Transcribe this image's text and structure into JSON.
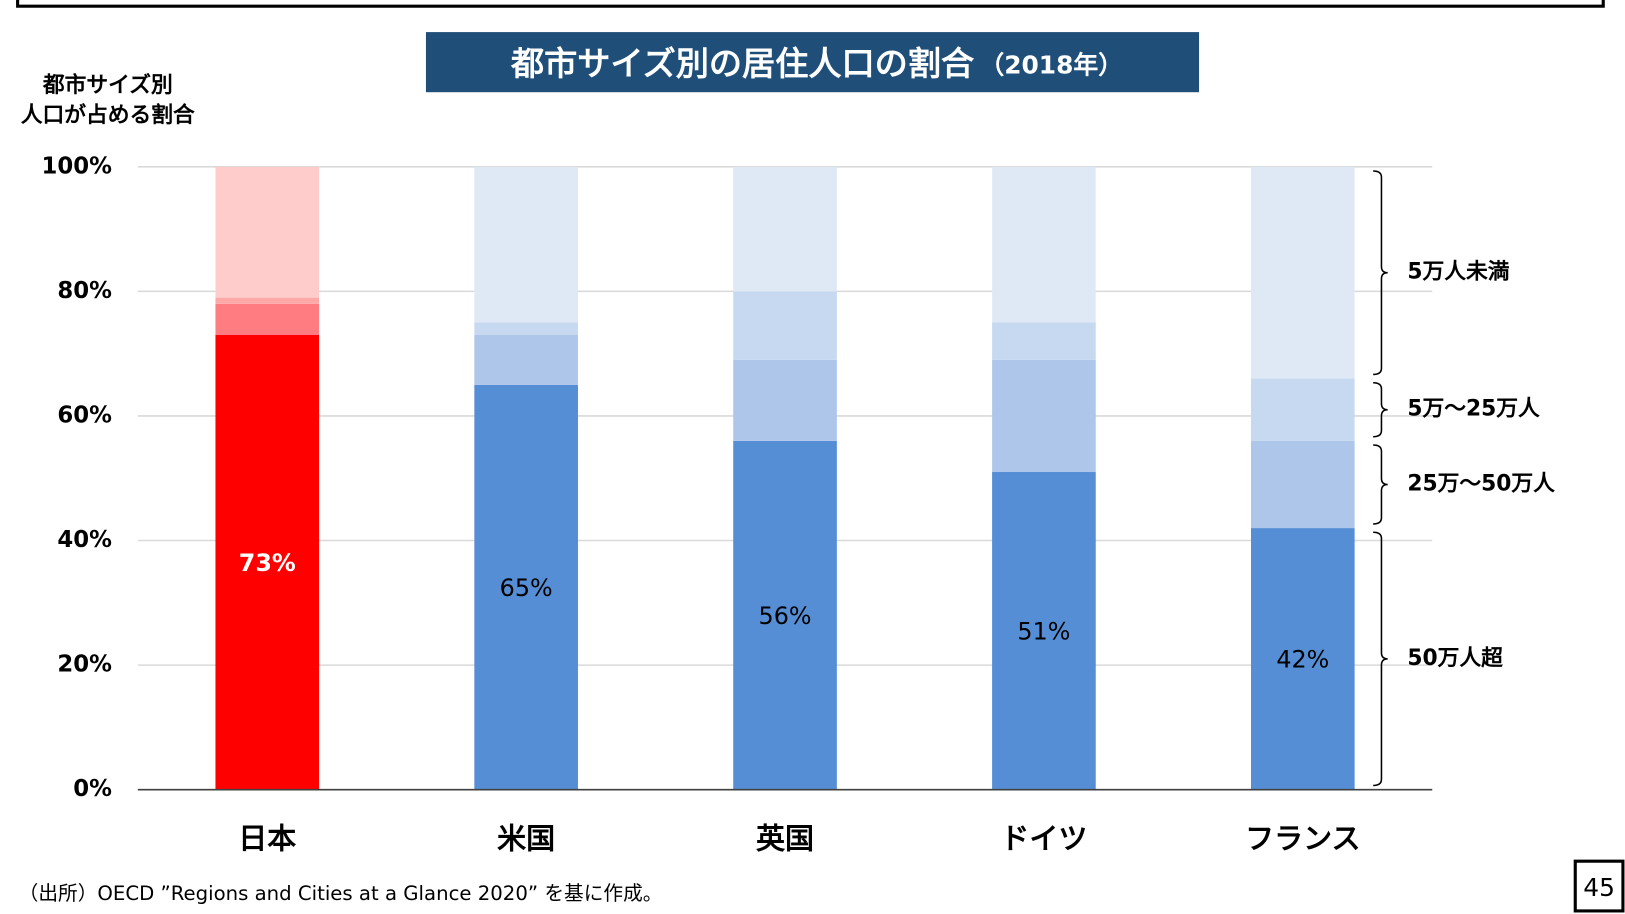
{
  "chart_data": {
    "type": "stacked_bar",
    "title": "都市サイズ別の居住人口の割合",
    "title_note": "（2018年）",
    "y_label": [
      "都市サイズ別",
      "人口が占める割合"
    ],
    "categories": [
      "日本",
      "米国",
      "英国",
      "ドイツ",
      "フランス"
    ],
    "highlight_category": "日本",
    "series": [
      {
        "name": "50万人超",
        "color": "#558ed5",
        "highlight_color": "#ff0000",
        "values": [
          73,
          65,
          56,
          51,
          42
        ],
        "value_labels": [
          "73%",
          "65%",
          "56%",
          "51%",
          "42%"
        ]
      },
      {
        "name": "25万〜50万人",
        "color": "#adc6ea",
        "highlight_color": "#ff7c80",
        "values": [
          5,
          8,
          13,
          18,
          14
        ]
      },
      {
        "name": "5万〜25万人",
        "color": "#c6d9f0",
        "highlight_color": "#ffa8a8",
        "values": [
          1,
          2,
          11,
          6,
          10
        ]
      },
      {
        "name": "5万人未満",
        "color": "#dfe9f6",
        "highlight_color": "#ffcccc",
        "values": [
          21,
          25,
          20,
          25,
          34
        ]
      }
    ],
    "ylim": [
      0,
      100
    ],
    "yticks": [
      {
        "value": 0,
        "label": "0%"
      },
      {
        "value": 20,
        "label": "20%"
      },
      {
        "value": 40,
        "label": "40%"
      },
      {
        "value": 60,
        "label": "60%"
      },
      {
        "value": 80,
        "label": "80%"
      },
      {
        "value": 100,
        "label": "100%"
      }
    ],
    "grid": true,
    "source": "（出所）OECD ”Regions and Cities at a Glance 2020” を基に作成。",
    "page_number": "45"
  }
}
